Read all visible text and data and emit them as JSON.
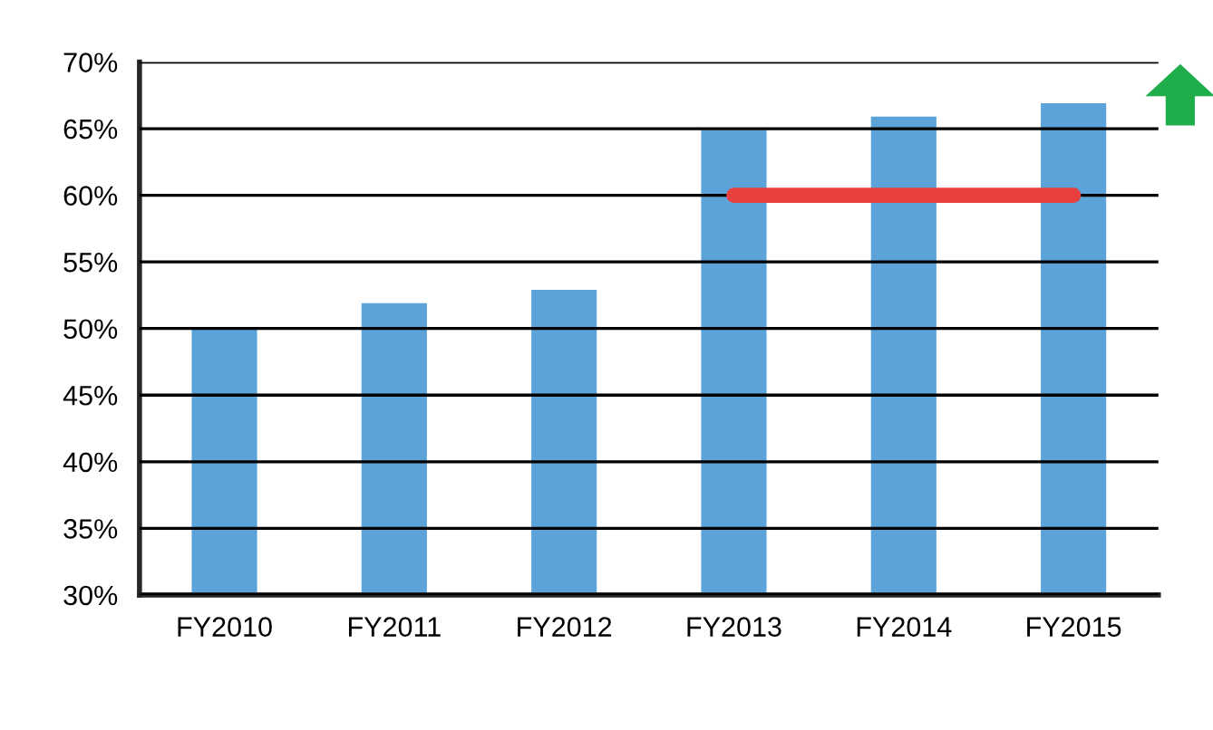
{
  "chart_data": {
    "type": "bar",
    "categories": [
      "FY2010",
      "FY2011",
      "FY2012",
      "FY2013",
      "FY2014",
      "FY2015"
    ],
    "series": [
      {
        "color": "#5ba3d9",
        "values": [
          50,
          52,
          53,
          65,
          66,
          67
        ]
      },
      {
        "type": "line",
        "color": "#e8403f",
        "values": [
          null,
          null,
          null,
          60,
          60,
          60
        ]
      }
    ],
    "ylim": [
      30,
      70
    ],
    "yticks": [
      {
        "value": 30,
        "label": "30%"
      },
      {
        "value": 35,
        "label": "35%"
      },
      {
        "value": 40,
        "label": "40%"
      },
      {
        "value": 45,
        "label": "45%"
      },
      {
        "value": 50,
        "label": "50%"
      },
      {
        "value": 55,
        "label": "55%"
      },
      {
        "value": 60,
        "label": "60%"
      },
      {
        "value": 65,
        "label": "65%"
      },
      {
        "value": 70,
        "label": "70%"
      }
    ],
    "grid": "y"
  }
}
